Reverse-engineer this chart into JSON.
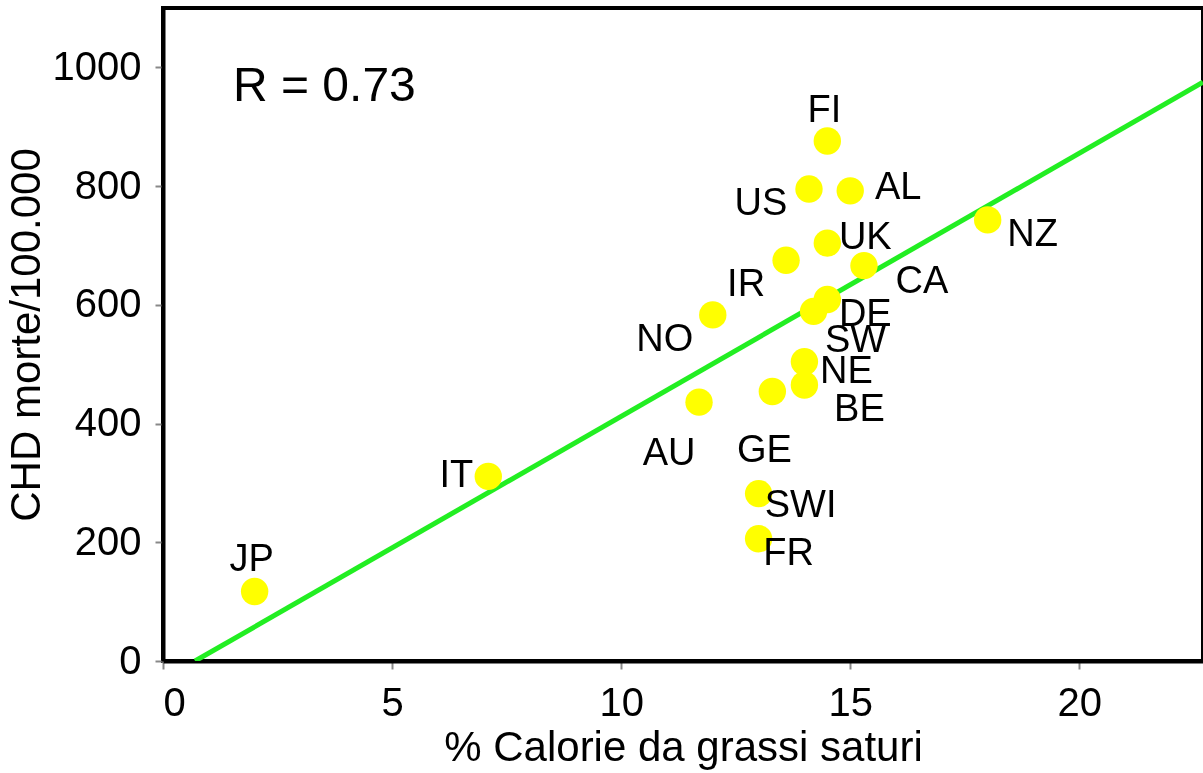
{
  "chart_data": {
    "type": "scatter",
    "xlabel": "% Calorie da grassi saturi",
    "ylabel": "CHD morte/100.000",
    "xlim": [
      0,
      22.7
    ],
    "ylim": [
      0,
      1100
    ],
    "xticks": [
      0,
      5,
      10,
      15,
      20
    ],
    "yticks": [
      0,
      200,
      400,
      600,
      800,
      1000
    ],
    "grid": false,
    "marker": "circle",
    "annotations": [
      "R = 0.73"
    ],
    "series": [
      {
        "name": "JP",
        "color": "#ffff00",
        "x": [
          2.0
        ],
        "values": [
          117
        ]
      },
      {
        "name": "IT",
        "color": "#ffff00",
        "x": [
          7.1
        ],
        "values": [
          311
        ]
      },
      {
        "name": "AU",
        "color": "#ffff00",
        "x": [
          11.7
        ],
        "values": [
          436
        ]
      },
      {
        "name": "NO",
        "color": "#ffff00",
        "x": [
          12.0
        ],
        "values": [
          583
        ]
      },
      {
        "name": "IR",
        "color": "#ffff00",
        "x": [
          13.6
        ],
        "values": [
          675
        ]
      },
      {
        "name": "US",
        "color": "#ffff00",
        "x": [
          14.1
        ],
        "values": [
          795
        ]
      },
      {
        "name": "FI",
        "color": "#ffff00",
        "x": [
          14.5
        ],
        "values": [
          876
        ]
      },
      {
        "name": "AL",
        "color": "#ffff00",
        "x": [
          15.0
        ],
        "values": [
          792
        ]
      },
      {
        "name": "UK",
        "color": "#ffff00",
        "x": [
          14.5
        ],
        "values": [
          704
        ]
      },
      {
        "name": "CA",
        "color": "#ffff00",
        "x": [
          15.3
        ],
        "values": [
          666
        ]
      },
      {
        "name": "DE",
        "color": "#ffff00",
        "x": [
          14.5
        ],
        "values": [
          609
        ]
      },
      {
        "name": "SW",
        "color": "#ffff00",
        "x": [
          14.2
        ],
        "values": [
          589
        ]
      },
      {
        "name": "NE",
        "color": "#ffff00",
        "x": [
          14.0
        ],
        "values": [
          504
        ]
      },
      {
        "name": "BE",
        "color": "#ffff00",
        "x": [
          14.0
        ],
        "values": [
          465
        ]
      },
      {
        "name": "GE",
        "color": "#ffff00",
        "x": [
          13.3
        ],
        "values": [
          454
        ]
      },
      {
        "name": "SWI",
        "color": "#ffff00",
        "x": [
          13.0
        ],
        "values": [
          282
        ]
      },
      {
        "name": "FR",
        "color": "#ffff00",
        "x": [
          13.0
        ],
        "values": [
          206
        ]
      },
      {
        "name": "NZ",
        "color": "#ffff00",
        "x": [
          18.0
        ],
        "values": [
          743
        ]
      },
      {
        "type": "line",
        "marker": "none",
        "color": "#22ee22",
        "x": [
          0.7,
          22.7
        ],
        "values": [
          0,
          975
        ]
      }
    ]
  }
}
